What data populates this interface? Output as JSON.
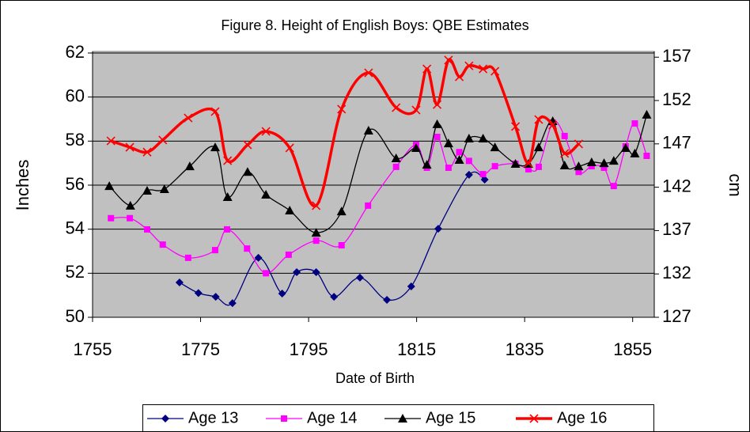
{
  "chart_data": {
    "type": "line",
    "title": "Figure 8. Height of English Boys: QBE Estimates",
    "x_label": "Date of Birth",
    "y_label": "Inches",
    "y2_label": "cm",
    "xlim": [
      1755,
      1859
    ],
    "xticks": [
      1755,
      1775,
      1795,
      1815,
      1835,
      1855
    ],
    "ylim": [
      50,
      62
    ],
    "yticks": [
      50,
      52,
      54,
      56,
      58,
      60,
      62
    ],
    "y2lim": [
      127,
      157.48
    ],
    "y2ticks": [
      127,
      132,
      137,
      142,
      147,
      152,
      157
    ],
    "grid": true,
    "legend": "bottom",
    "smooth": true,
    "series": [
      {
        "name": "Age 13",
        "color": "#000080",
        "marker": "diamond",
        "width": 1.3,
        "x": [
          1771.1,
          1774.6,
          1777.8,
          1780.9,
          1785.7,
          1790.1,
          1792.8,
          1796.4,
          1799.7,
          1804.5,
          1809.5,
          1814,
          1819,
          1824.7,
          1827.6
        ],
        "values": [
          51.58,
          51.1,
          50.93,
          50.64,
          52.7,
          51.08,
          52.05,
          52.05,
          50.93,
          51.8,
          50.79,
          51.4,
          54.02,
          56.47,
          56.25
        ]
      },
      {
        "name": "Age 14",
        "color": "#ff00ff",
        "marker": "square",
        "width": 1.3,
        "x": [
          1758.4,
          1761.9,
          1765.1,
          1768,
          1772.7,
          1777.7,
          1779.9,
          1783.6,
          1787.1,
          1791.3,
          1796.4,
          1801.1,
          1806,
          1811.2,
          1814.9,
          1816.9,
          1818.8,
          1820.9,
          1822.9,
          1824.7,
          1827.3,
          1829.5,
          1833.3,
          1835.7,
          1837.6,
          1840.2,
          1842.4,
          1845,
          1847.4,
          1849.7,
          1851.5,
          1853.7,
          1855.4,
          1857.6
        ],
        "values": [
          54.5,
          54.5,
          53.99,
          53.3,
          52.7,
          53.05,
          53.99,
          53.12,
          52.0,
          52.84,
          53.48,
          53.27,
          55.07,
          56.83,
          57.83,
          56.79,
          58.19,
          56.79,
          57.5,
          57.1,
          56.5,
          56.86,
          56.97,
          56.72,
          56.83,
          58.84,
          58.23,
          56.6,
          56.86,
          56.79,
          55.96,
          57.76,
          58.8,
          57.33
        ]
      },
      {
        "name": "Age 15",
        "color": "#000000",
        "marker": "triangle",
        "width": 1.3,
        "x": [
          1758.1,
          1762,
          1765.1,
          1768.3,
          1773,
          1777.7,
          1780,
          1783.7,
          1787.1,
          1791.5,
          1796.4,
          1801.1,
          1806.1,
          1811.2,
          1814.9,
          1816.9,
          1818.8,
          1820.9,
          1822.9,
          1824.7,
          1827.3,
          1829.5,
          1833.3,
          1835.7,
          1837.6,
          1840.2,
          1842.4,
          1845,
          1847.4,
          1849.7,
          1851.5,
          1853.7,
          1855.4,
          1857.6
        ],
        "values": [
          55.96,
          55.07,
          55.75,
          55.82,
          56.86,
          57.72,
          55.46,
          56.6,
          55.57,
          54.85,
          53.84,
          54.81,
          58.48,
          57.22,
          57.69,
          56.93,
          58.77,
          57.9,
          57.15,
          58.12,
          58.12,
          57.72,
          56.97,
          56.97,
          57.72,
          58.91,
          56.9,
          56.86,
          57.04,
          57.0,
          57.11,
          57.69,
          57.44,
          59.2
        ]
      },
      {
        "name": "Age 16",
        "color": "#ff0000",
        "marker": "x",
        "width": 3.5,
        "x": [
          1758.4,
          1761.9,
          1765.1,
          1768,
          1772.7,
          1777.7,
          1780,
          1783.7,
          1787.1,
          1791.5,
          1796.4,
          1801.1,
          1806.1,
          1811.2,
          1814.9,
          1816.9,
          1818.8,
          1820.9,
          1822.9,
          1824.7,
          1827.3,
          1829.5,
          1833.3,
          1835.7,
          1837.6,
          1840.2,
          1842.4,
          1845
        ],
        "values": [
          58.01,
          57.72,
          57.5,
          58.05,
          59.05,
          59.34,
          57.11,
          57.83,
          58.44,
          57.69,
          55.07,
          59.45,
          61.1,
          59.52,
          59.41,
          61.28,
          59.66,
          61.68,
          60.92,
          61.42,
          61.28,
          61.17,
          58.66,
          57.0,
          58.98,
          58.73,
          57.44,
          57.87
        ]
      }
    ]
  }
}
